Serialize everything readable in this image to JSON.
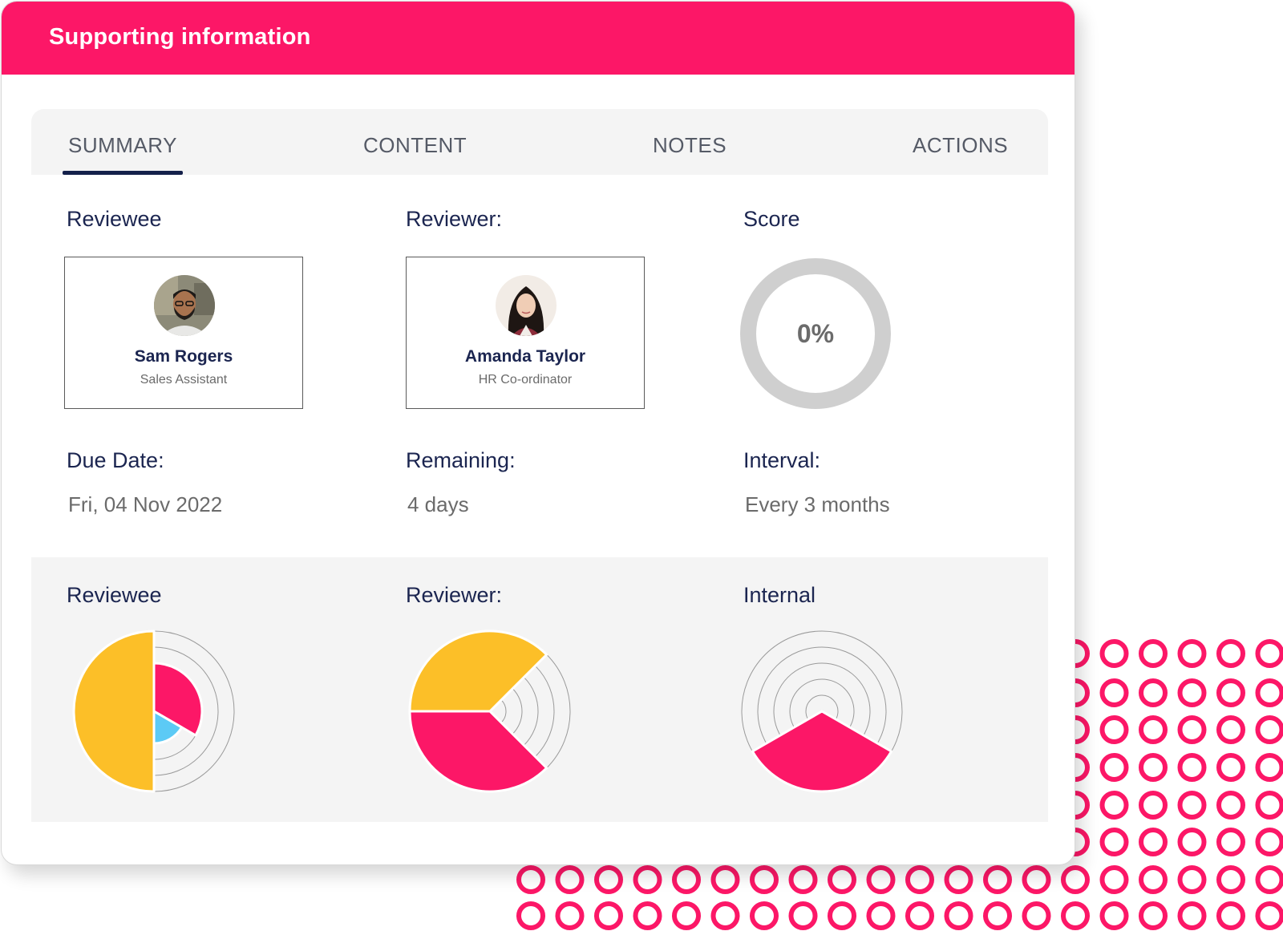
{
  "header": {
    "title": "Supporting information"
  },
  "tabs": [
    {
      "label": "SUMMARY",
      "active": true
    },
    {
      "label": "CONTENT",
      "active": false
    },
    {
      "label": "NOTES",
      "active": false
    },
    {
      "label": "ACTIONS",
      "active": false
    }
  ],
  "summary": {
    "reviewee_label": "Reviewee",
    "reviewer_label": "Reviewer:",
    "score_label": "Score",
    "reviewee": {
      "name": "Sam Rogers",
      "role": "Sales Assistant"
    },
    "reviewer": {
      "name": "Amanda Taylor",
      "role": "HR Co-ordinator"
    },
    "score": {
      "value_text": "0%",
      "percent": 0
    },
    "due_date_label": "Due Date:",
    "due_date": "Fri, 04 Nov 2022",
    "remaining_label": "Remaining:",
    "remaining": "4 days",
    "interval_label": "Interval:",
    "interval": "Every 3 months"
  },
  "colors": {
    "brand": "#fc1767",
    "navy": "#1b2550",
    "chart_yellow": "#fcbf28",
    "chart_pink": "#fc1767",
    "chart_blue": "#5ccaf5",
    "ring_gray": "#cfcfcf"
  },
  "chart_data": [
    {
      "type": "pie",
      "title": "Reviewee",
      "rings": 5,
      "slices": [
        {
          "from_deg": 180,
          "to_deg": 360,
          "ring": 5,
          "color": "#fcbf28"
        },
        {
          "from_deg": 0,
          "to_deg": 120,
          "ring": 3,
          "color": "#fc1767"
        },
        {
          "from_deg": 120,
          "to_deg": 180,
          "ring": 2,
          "color": "#5ccaf5"
        }
      ]
    },
    {
      "type": "pie",
      "title": "Reviewer:",
      "rings": 5,
      "slices": [
        {
          "from_deg": 270,
          "to_deg": 405,
          "ring": 5,
          "color": "#fcbf28"
        },
        {
          "from_deg": 135,
          "to_deg": 270,
          "ring": 5,
          "color": "#fc1767"
        }
      ]
    },
    {
      "type": "pie",
      "title": "Internal",
      "rings": 5,
      "slices": [
        {
          "from_deg": 120,
          "to_deg": 240,
          "ring": 5,
          "color": "#fc1767"
        }
      ]
    }
  ]
}
